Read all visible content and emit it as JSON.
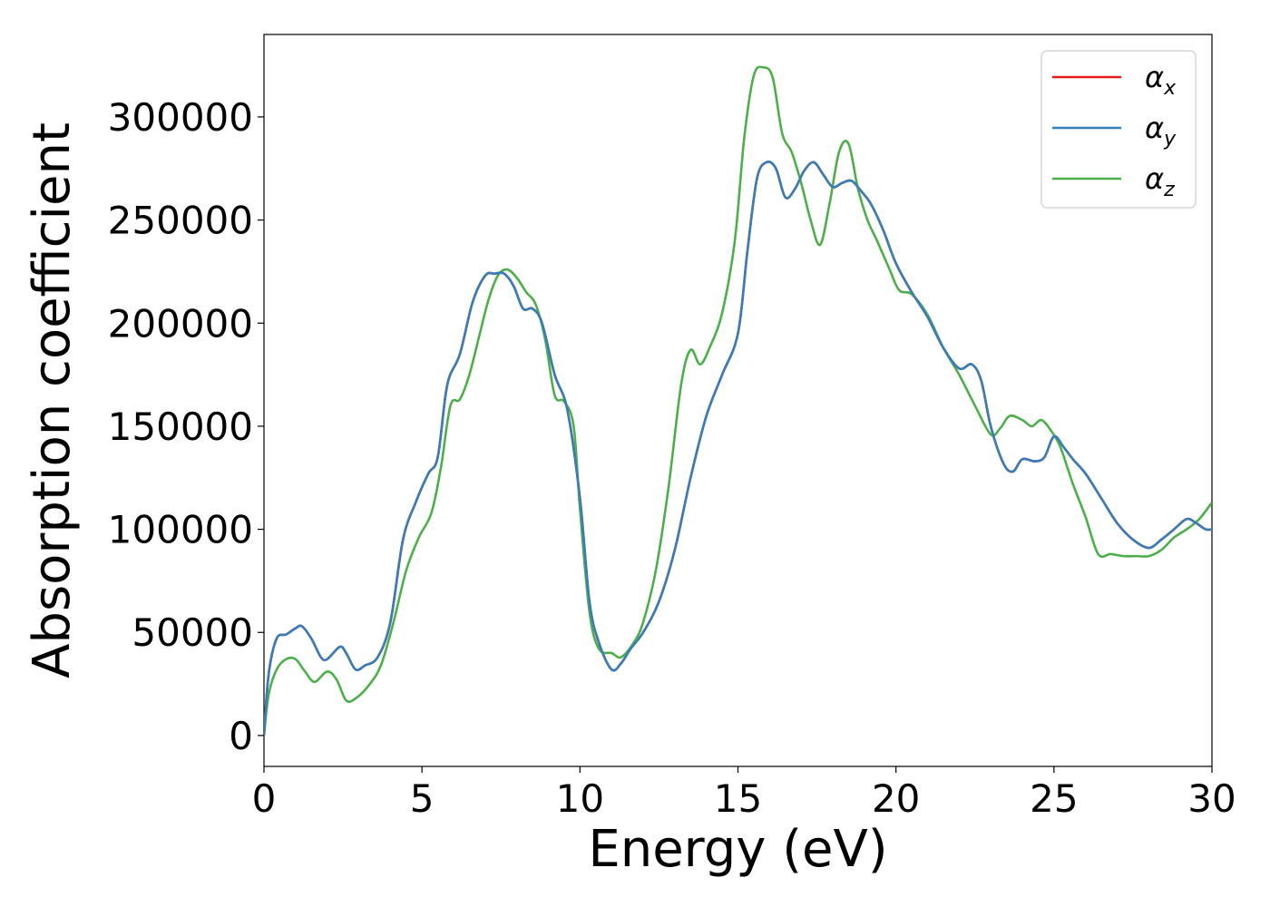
{
  "chart_data": {
    "type": "line",
    "title": "",
    "xlabel": "Energy (eV)",
    "ylabel": "Absorption coefficient",
    "xlim": [
      0,
      30
    ],
    "ylim": [
      -15000,
      340000
    ],
    "xticks": [
      0,
      5,
      10,
      15,
      20,
      25,
      30
    ],
    "xtick_labels": [
      "0",
      "5",
      "10",
      "15",
      "20",
      "25",
      "30"
    ],
    "yticks": [
      0,
      50000,
      100000,
      150000,
      200000,
      250000,
      300000
    ],
    "ytick_labels": [
      "0",
      "50000",
      "100000",
      "150000",
      "200000",
      "250000",
      "300000"
    ],
    "grid": false,
    "legend_position": "top-right",
    "series": [
      {
        "name": "α_x",
        "label_base": "α",
        "label_sub": "x",
        "color": "#e41a1c",
        "x": [
          0,
          0.15,
          0.4,
          0.7,
          1.0,
          1.2,
          1.5,
          1.8,
          2.0,
          2.4,
          2.6,
          2.9,
          3.2,
          3.6,
          4.0,
          4.4,
          4.8,
          5.2,
          5.5,
          5.8,
          6.2,
          6.6,
          7.0,
          7.3,
          7.6,
          7.9,
          8.2,
          8.5,
          8.8,
          9.2,
          9.6,
          10.0,
          10.3,
          10.6,
          11.0,
          11.3,
          11.6,
          12.0,
          12.5,
          13.0,
          13.5,
          14.0,
          14.5,
          15.0,
          15.3,
          15.6,
          15.9,
          16.2,
          16.5,
          16.8,
          17.1,
          17.4,
          17.7,
          18.0,
          18.3,
          18.6,
          18.9,
          19.2,
          19.6,
          20.0,
          20.5,
          21.0,
          21.5,
          22.0,
          22.4,
          22.7,
          23.0,
          23.4,
          23.7,
          24.0,
          24.4,
          24.7,
          25.0,
          25.3,
          25.6,
          26.0,
          26.5,
          27.0,
          27.5,
          28.0,
          28.4,
          28.8,
          29.2,
          29.5,
          29.8,
          30.0
        ],
        "y": [
          0,
          30000,
          47000,
          49000,
          52000,
          53000,
          47000,
          38000,
          37000,
          43000,
          40000,
          32000,
          34000,
          38000,
          55000,
          95000,
          113000,
          127000,
          135000,
          170000,
          185000,
          210000,
          223000,
          224000,
          224000,
          218000,
          207000,
          207000,
          200000,
          175000,
          158000,
          115000,
          65000,
          45000,
          32000,
          35000,
          42000,
          50000,
          65000,
          90000,
          125000,
          155000,
          175000,
          195000,
          235000,
          270000,
          278000,
          275000,
          261000,
          265000,
          274000,
          278000,
          272000,
          266000,
          268000,
          269000,
          264000,
          258000,
          245000,
          229000,
          215000,
          203000,
          188000,
          178000,
          180000,
          172000,
          150000,
          132000,
          128000,
          134000,
          133000,
          135000,
          145000,
          140000,
          134000,
          127000,
          115000,
          103000,
          95000,
          91000,
          95000,
          100000,
          105000,
          103000,
          100000,
          100000
        ]
      },
      {
        "name": "α_y",
        "label_base": "α",
        "label_sub": "y",
        "color": "#377eb8",
        "x": [
          0,
          0.15,
          0.4,
          0.7,
          1.0,
          1.2,
          1.5,
          1.8,
          2.0,
          2.4,
          2.6,
          2.9,
          3.2,
          3.6,
          4.0,
          4.4,
          4.8,
          5.2,
          5.5,
          5.8,
          6.2,
          6.6,
          7.0,
          7.3,
          7.6,
          7.9,
          8.2,
          8.5,
          8.8,
          9.2,
          9.6,
          10.0,
          10.3,
          10.6,
          11.0,
          11.3,
          11.6,
          12.0,
          12.5,
          13.0,
          13.5,
          14.0,
          14.5,
          15.0,
          15.3,
          15.6,
          15.9,
          16.2,
          16.5,
          16.8,
          17.1,
          17.4,
          17.7,
          18.0,
          18.3,
          18.6,
          18.9,
          19.2,
          19.6,
          20.0,
          20.5,
          21.0,
          21.5,
          22.0,
          22.4,
          22.7,
          23.0,
          23.4,
          23.7,
          24.0,
          24.4,
          24.7,
          25.0,
          25.3,
          25.6,
          26.0,
          26.5,
          27.0,
          27.5,
          28.0,
          28.4,
          28.8,
          29.2,
          29.5,
          29.8,
          30.0
        ],
        "y": [
          0,
          30000,
          47000,
          49000,
          52000,
          53000,
          47000,
          38000,
          37000,
          43000,
          40000,
          32000,
          34000,
          38000,
          55000,
          95000,
          113000,
          127000,
          135000,
          170000,
          185000,
          210000,
          223000,
          224000,
          224000,
          218000,
          207000,
          207000,
          200000,
          175000,
          158000,
          115000,
          65000,
          45000,
          32000,
          35000,
          42000,
          50000,
          65000,
          90000,
          125000,
          155000,
          175000,
          195000,
          235000,
          270000,
          278000,
          275000,
          261000,
          265000,
          274000,
          278000,
          272000,
          266000,
          268000,
          269000,
          264000,
          258000,
          245000,
          229000,
          215000,
          203000,
          188000,
          178000,
          180000,
          172000,
          150000,
          132000,
          128000,
          134000,
          133000,
          135000,
          145000,
          140000,
          134000,
          127000,
          115000,
          103000,
          95000,
          91000,
          95000,
          100000,
          105000,
          103000,
          100000,
          100000
        ]
      },
      {
        "name": "α_z",
        "label_base": "α",
        "label_sub": "z",
        "color": "#4daf4a",
        "x": [
          0,
          0.15,
          0.4,
          0.7,
          1.0,
          1.3,
          1.6,
          2.0,
          2.3,
          2.6,
          2.9,
          3.3,
          3.7,
          4.1,
          4.5,
          4.9,
          5.3,
          5.6,
          5.9,
          6.2,
          6.5,
          6.8,
          7.1,
          7.4,
          7.7,
          8.0,
          8.3,
          8.6,
          8.9,
          9.2,
          9.5,
          9.8,
          10.0,
          10.3,
          10.6,
          11.0,
          11.3,
          11.7,
          12.0,
          12.4,
          12.8,
          13.2,
          13.5,
          13.8,
          14.1,
          14.5,
          14.9,
          15.2,
          15.5,
          15.8,
          16.1,
          16.4,
          16.7,
          17.0,
          17.3,
          17.6,
          17.9,
          18.2,
          18.5,
          18.8,
          19.1,
          19.4,
          19.8,
          20.1,
          20.5,
          21.0,
          21.5,
          22.0,
          22.5,
          23.0,
          23.3,
          23.6,
          24.0,
          24.3,
          24.6,
          24.9,
          25.2,
          25.6,
          26.0,
          26.4,
          26.8,
          27.2,
          27.6,
          28.0,
          28.4,
          28.8,
          29.2,
          29.6,
          30.0
        ],
        "y": [
          0,
          20000,
          32000,
          37000,
          37000,
          31000,
          26000,
          31000,
          27000,
          17000,
          18000,
          24000,
          34000,
          55000,
          80000,
          96000,
          108000,
          130000,
          160000,
          163000,
          175000,
          193000,
          211000,
          223000,
          226000,
          222000,
          215000,
          209000,
          192000,
          165000,
          162000,
          150000,
          110000,
          60000,
          42000,
          40000,
          38000,
          45000,
          55000,
          80000,
          120000,
          170000,
          187000,
          180000,
          188000,
          205000,
          240000,
          290000,
          320000,
          324000,
          319000,
          292000,
          283000,
          268000,
          250000,
          238000,
          258000,
          283000,
          287000,
          265000,
          250000,
          240000,
          226000,
          216000,
          214000,
          204000,
          188000,
          175000,
          160000,
          146000,
          149000,
          155000,
          153000,
          150000,
          153000,
          148000,
          140000,
          122000,
          106000,
          88000,
          88000,
          87000,
          87000,
          87000,
          90000,
          96000,
          100000,
          105000,
          113000
        ]
      }
    ]
  }
}
